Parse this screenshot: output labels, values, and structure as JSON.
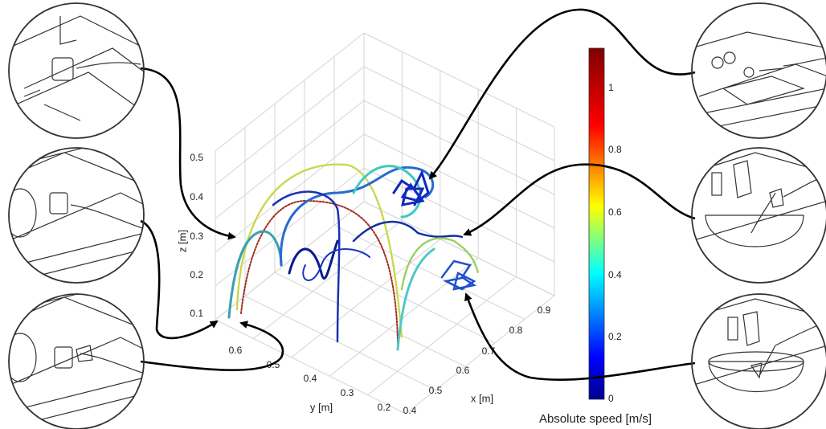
{
  "plot": {
    "z_label": "z [m]",
    "y_label": "y [m]",
    "x_label": "x [m]",
    "z_ticks": [
      "0.5",
      "0.4",
      "0.3",
      "0.2",
      "0.1"
    ],
    "y_ticks": [
      "0.6",
      "0.5",
      "0.4",
      "0.3",
      "0.2"
    ],
    "x_ticks": [
      "0.4",
      "0.5",
      "0.6",
      "0.7",
      "0.8",
      "0.9"
    ]
  },
  "colorbar": {
    "label": "Absolute speed [m/s]",
    "ticks": [
      "1",
      "0.8",
      "0.6",
      "0.4",
      "0.2",
      "0"
    ]
  }
}
